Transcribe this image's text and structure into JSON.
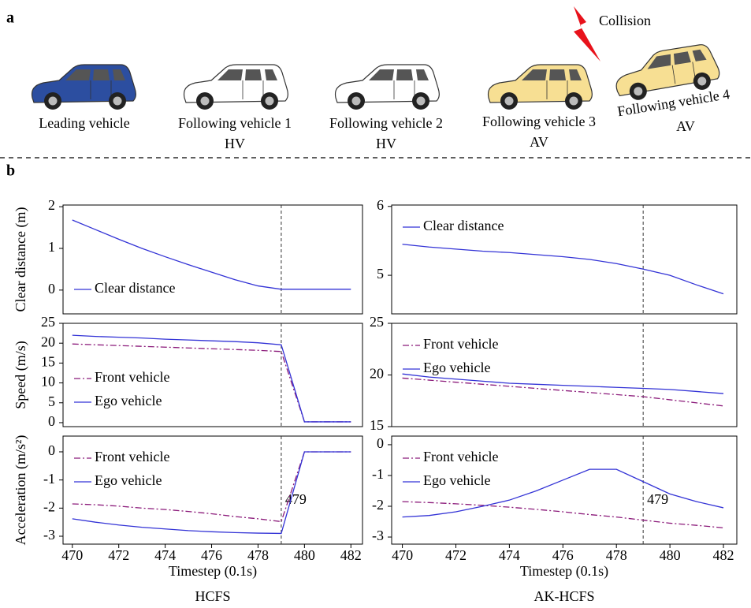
{
  "panel_labels": [
    "a",
    "b"
  ],
  "collision": "Collision",
  "vehicles": [
    {
      "label": "Leading vehicle"
    },
    {
      "label": "Following vehicle 1",
      "kind": "HV"
    },
    {
      "label": "Following vehicle 2",
      "kind": "HV"
    },
    {
      "label": "Following vehicle 3",
      "kind": "AV"
    },
    {
      "label": "Following vehicle 4",
      "kind": "AV"
    }
  ],
  "columns": [
    "HCFS",
    "AK-HCFS"
  ],
  "chart_data": [
    {
      "type": "line",
      "ylabel": "Clear distance (m)",
      "x": [
        470,
        471,
        472,
        473,
        474,
        475,
        476,
        477,
        478,
        479,
        480,
        481,
        482
      ],
      "xlim": [
        469.6,
        482.5
      ],
      "ylim": [
        -0.57,
        2.04
      ],
      "yticks": [
        0,
        1,
        2
      ],
      "vline": 479,
      "legend": "lower left",
      "series": [
        {
          "name": "Clear distance",
          "color": "#3333d6",
          "dash": "solid",
          "values": [
            1.68,
            1.45,
            1.22,
            1.0,
            0.8,
            0.61,
            0.43,
            0.25,
            0.1,
            0.02,
            0.02,
            0.02,
            0.02
          ]
        }
      ]
    },
    {
      "type": "line",
      "x": [
        470,
        471,
        472,
        473,
        474,
        475,
        476,
        477,
        478,
        479,
        480,
        481,
        482
      ],
      "xlim": [
        469.6,
        482.5
      ],
      "ylim": [
        4.44,
        6.02
      ],
      "yticks": [
        5,
        6
      ],
      "vline": 479,
      "legend": "upper left",
      "series": [
        {
          "name": "Clear distance",
          "color": "#3333d6",
          "dash": "solid",
          "values": [
            5.45,
            5.41,
            5.38,
            5.35,
            5.33,
            5.3,
            5.27,
            5.23,
            5.17,
            5.09,
            5.0,
            4.86,
            4.73
          ]
        }
      ]
    },
    {
      "type": "line",
      "ylabel": "Speed (m/s)",
      "x": [
        470,
        471,
        472,
        473,
        474,
        475,
        476,
        477,
        478,
        479,
        480,
        481,
        482
      ],
      "xlim": [
        469.6,
        482.5
      ],
      "ylim": [
        -1,
        25
      ],
      "yticks": [
        0,
        5,
        10,
        15,
        20,
        25
      ],
      "vline": 479,
      "legend": "lower left",
      "series": [
        {
          "name": "Front vehicle",
          "color": "#8b1a7a",
          "dash": "dashdot",
          "values": [
            19.8,
            19.6,
            19.4,
            19.2,
            19.0,
            18.8,
            18.6,
            18.4,
            18.2,
            17.9,
            0.2,
            0.2,
            0.2
          ]
        },
        {
          "name": "Ego vehicle",
          "color": "#3333d6",
          "dash": "solid",
          "values": [
            22.0,
            21.7,
            21.5,
            21.3,
            21.0,
            20.8,
            20.6,
            20.4,
            20.1,
            19.6,
            0.2,
            0.2,
            0.2
          ]
        }
      ]
    },
    {
      "type": "line",
      "x": [
        470,
        471,
        472,
        473,
        474,
        475,
        476,
        477,
        478,
        479,
        480,
        481,
        482
      ],
      "xlim": [
        469.6,
        482.5
      ],
      "ylim": [
        15,
        25
      ],
      "yticks": [
        15,
        20,
        25
      ],
      "vline": 479,
      "legend": "upper left",
      "series": [
        {
          "name": "Front vehicle",
          "color": "#8b1a7a",
          "dash": "dashdot",
          "values": [
            19.7,
            19.5,
            19.3,
            19.1,
            18.9,
            18.7,
            18.5,
            18.3,
            18.1,
            17.9,
            17.6,
            17.3,
            17.0
          ]
        },
        {
          "name": "Ego vehicle",
          "color": "#3333d6",
          "dash": "solid",
          "values": [
            20.1,
            19.8,
            19.6,
            19.4,
            19.2,
            19.1,
            19.0,
            18.9,
            18.8,
            18.7,
            18.6,
            18.4,
            18.2
          ]
        }
      ]
    },
    {
      "type": "line",
      "ylabel": "Acceleration (m/s²)",
      "xlabel": "Timestep (0.1s)",
      "x": [
        470,
        471,
        472,
        473,
        474,
        475,
        476,
        477,
        478,
        479,
        480,
        481,
        482
      ],
      "xlim": [
        469.6,
        482.5
      ],
      "xticks": [
        470,
        472,
        474,
        476,
        478,
        480,
        482
      ],
      "ylim": [
        -3.28,
        0.56
      ],
      "yticks": [
        0,
        -1,
        -2,
        -3
      ],
      "vline": 479,
      "legend": "upper left",
      "annotation": "479",
      "series": [
        {
          "name": "Front vehicle",
          "color": "#8b1a7a",
          "dash": "dashdot",
          "values": [
            -1.85,
            -1.88,
            -1.93,
            -2.0,
            -2.05,
            -2.12,
            -2.2,
            -2.3,
            -2.38,
            -2.48,
            0,
            0,
            0
          ]
        },
        {
          "name": "Ego vehicle",
          "color": "#3333d6",
          "dash": "solid",
          "values": [
            -2.38,
            -2.5,
            -2.6,
            -2.68,
            -2.74,
            -2.8,
            -2.84,
            -2.87,
            -2.89,
            -2.9,
            0,
            0,
            0
          ]
        }
      ]
    },
    {
      "type": "line",
      "xlabel": "Timestep (0.1s)",
      "x": [
        470,
        471,
        472,
        473,
        474,
        475,
        476,
        477,
        478,
        479,
        480,
        481,
        482
      ],
      "xlim": [
        469.6,
        482.5
      ],
      "xticks": [
        470,
        472,
        474,
        476,
        478,
        480,
        482
      ],
      "ylim": [
        -3.23,
        0.28
      ],
      "yticks": [
        0,
        -1,
        -2,
        -3
      ],
      "vline": 479,
      "legend": "upper left",
      "annotation": "479",
      "series": [
        {
          "name": "Front vehicle",
          "color": "#8b1a7a",
          "dash": "dashdot",
          "values": [
            -1.85,
            -1.88,
            -1.92,
            -1.97,
            -2.03,
            -2.1,
            -2.18,
            -2.27,
            -2.35,
            -2.45,
            -2.55,
            -2.62,
            -2.7
          ]
        },
        {
          "name": "Ego vehicle",
          "color": "#3333d6",
          "dash": "solid",
          "values": [
            -2.35,
            -2.3,
            -2.18,
            -2.0,
            -1.8,
            -1.5,
            -1.15,
            -0.8,
            -0.8,
            -1.2,
            -1.6,
            -1.85,
            -2.05
          ]
        }
      ]
    }
  ]
}
